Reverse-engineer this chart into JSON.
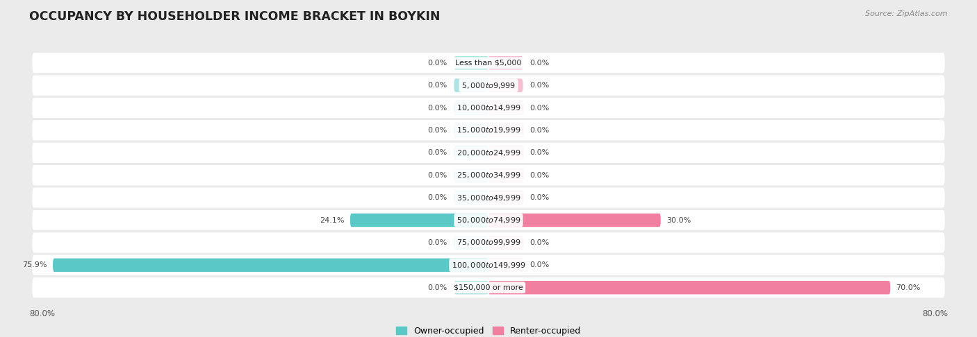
{
  "title": "OCCUPANCY BY HOUSEHOLDER INCOME BRACKET IN BOYKIN",
  "source": "Source: ZipAtlas.com",
  "categories": [
    "Less than $5,000",
    "$5,000 to $9,999",
    "$10,000 to $14,999",
    "$15,000 to $19,999",
    "$20,000 to $24,999",
    "$25,000 to $34,999",
    "$35,000 to $49,999",
    "$50,000 to $74,999",
    "$75,000 to $99,999",
    "$100,000 to $149,999",
    "$150,000 or more"
  ],
  "owner_values": [
    0.0,
    0.0,
    0.0,
    0.0,
    0.0,
    0.0,
    0.0,
    24.1,
    0.0,
    75.9,
    0.0
  ],
  "renter_values": [
    0.0,
    0.0,
    0.0,
    0.0,
    0.0,
    0.0,
    0.0,
    30.0,
    0.0,
    0.0,
    70.0
  ],
  "owner_color": "#5bc8c8",
  "renter_color": "#f07fa0",
  "background_color": "#ebebeb",
  "row_bg_color": "#ffffff",
  "xlim": 80.0,
  "stub_size": 6.0,
  "legend_labels": [
    "Owner-occupied",
    "Renter-occupied"
  ]
}
